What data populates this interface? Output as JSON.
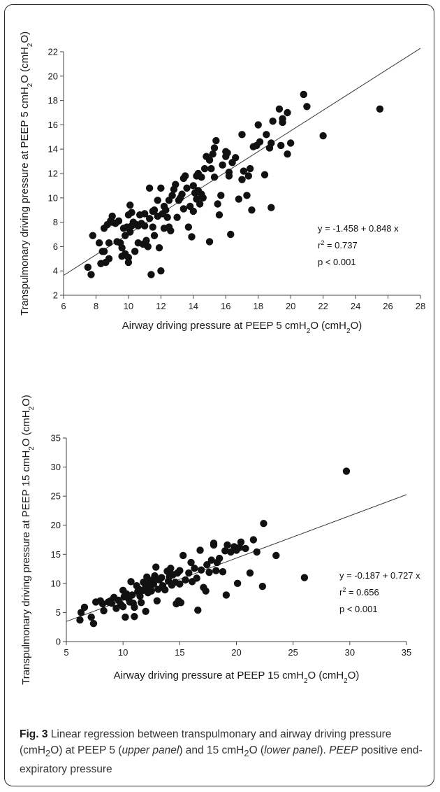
{
  "chart_data": [
    {
      "type": "scatter",
      "xlabel_parts": [
        "Airway driving pressure at PEEP 5 cmH",
        "2",
        "O (cmH",
        "2",
        "O)"
      ],
      "ylabel_parts": [
        "Transpulmonary driving pressure at PEEP 5 cmH",
        "2",
        "O (cmH",
        "2",
        "O)"
      ],
      "xlim": [
        6,
        28
      ],
      "ylim": [
        2,
        22
      ],
      "xticks": [
        6,
        8,
        10,
        12,
        14,
        16,
        18,
        20,
        22,
        24,
        26,
        28
      ],
      "yticks": [
        2,
        4,
        6,
        8,
        10,
        12,
        14,
        16,
        18,
        20,
        22
      ],
      "regression": {
        "intercept": -1.458,
        "slope": 0.848
      },
      "annotation": {
        "equation": "y = -1.458 + 0.848 x",
        "r2_label": "r",
        "r2_sup": "2",
        "r2_value": " = 0.737",
        "p": "p < 0.001"
      },
      "points": [
        [
          7.5,
          4.3
        ],
        [
          7.7,
          3.7
        ],
        [
          7.8,
          6.9
        ],
        [
          8.2,
          6.3
        ],
        [
          8.3,
          4.6
        ],
        [
          8.4,
          5.6
        ],
        [
          8.5,
          7.5
        ],
        [
          8.5,
          5.6
        ],
        [
          8.6,
          4.7
        ],
        [
          8.7,
          7.8
        ],
        [
          8.8,
          6.3
        ],
        [
          8.8,
          5.0
        ],
        [
          8.9,
          8.1
        ],
        [
          9.0,
          8.5
        ],
        [
          9.0,
          8.0
        ],
        [
          9.2,
          7.9
        ],
        [
          9.3,
          6.4
        ],
        [
          9.4,
          8.1
        ],
        [
          9.5,
          6.3
        ],
        [
          9.6,
          5.9
        ],
        [
          9.6,
          5.2
        ],
        [
          9.7,
          7.5
        ],
        [
          9.8,
          6.9
        ],
        [
          9.8,
          5.4
        ],
        [
          9.9,
          7.6
        ],
        [
          10.0,
          8.6
        ],
        [
          10.0,
          4.7
        ],
        [
          10.0,
          5.1
        ],
        [
          10.1,
          7.2
        ],
        [
          10.1,
          9.4
        ],
        [
          10.2,
          7.7
        ],
        [
          10.2,
          8.8
        ],
        [
          10.3,
          8.0
        ],
        [
          10.4,
          5.6
        ],
        [
          10.5,
          7.8
        ],
        [
          10.6,
          6.3
        ],
        [
          10.6,
          7.7
        ],
        [
          10.7,
          8.6
        ],
        [
          10.8,
          7.9
        ],
        [
          10.9,
          6.2
        ],
        [
          11.0,
          8.7
        ],
        [
          11.0,
          7.7
        ],
        [
          11.1,
          6.5
        ],
        [
          11.2,
          6.0
        ],
        [
          11.3,
          8.3
        ],
        [
          11.3,
          10.8
        ],
        [
          11.4,
          3.7
        ],
        [
          11.5,
          7.6
        ],
        [
          11.5,
          8.9
        ],
        [
          11.6,
          9.0
        ],
        [
          11.6,
          6.9
        ],
        [
          11.8,
          9.8
        ],
        [
          11.8,
          8.5
        ],
        [
          11.9,
          5.9
        ],
        [
          12.0,
          10.8
        ],
        [
          12.0,
          4.0
        ],
        [
          12.1,
          8.7
        ],
        [
          12.2,
          9.3
        ],
        [
          12.2,
          7.5
        ],
        [
          12.3,
          9.0
        ],
        [
          12.4,
          8.4
        ],
        [
          12.5,
          9.8
        ],
        [
          12.5,
          7.6
        ],
        [
          12.6,
          7.3
        ],
        [
          12.7,
          10.2
        ],
        [
          12.8,
          10.7
        ],
        [
          12.9,
          11.1
        ],
        [
          13.0,
          8.4
        ],
        [
          13.1,
          9.8
        ],
        [
          13.2,
          10.0
        ],
        [
          13.3,
          10.3
        ],
        [
          13.4,
          9.1
        ],
        [
          13.4,
          11.6
        ],
        [
          13.5,
          11.8
        ],
        [
          13.6,
          10.8
        ],
        [
          13.7,
          7.6
        ],
        [
          13.8,
          9.3
        ],
        [
          13.9,
          6.8
        ],
        [
          14.0,
          8.9
        ],
        [
          14.0,
          11.0
        ],
        [
          14.1,
          10.4
        ],
        [
          14.2,
          11.8
        ],
        [
          14.2,
          9.9
        ],
        [
          14.3,
          10.6
        ],
        [
          14.3,
          12.0
        ],
        [
          14.4,
          9.5
        ],
        [
          14.5,
          10.3
        ],
        [
          14.5,
          11.7
        ],
        [
          14.6,
          10.0
        ],
        [
          14.7,
          12.4
        ],
        [
          14.8,
          13.4
        ],
        [
          15.0,
          6.4
        ],
        [
          15.0,
          13.1
        ],
        [
          15.1,
          12.4
        ],
        [
          15.2,
          13.6
        ],
        [
          15.3,
          14.1
        ],
        [
          15.3,
          11.7
        ],
        [
          15.4,
          14.7
        ],
        [
          15.5,
          9.5
        ],
        [
          15.6,
          8.6
        ],
        [
          15.7,
          10.2
        ],
        [
          15.8,
          12.7
        ],
        [
          16.0,
          13.8
        ],
        [
          16.0,
          13.4
        ],
        [
          16.1,
          13.7
        ],
        [
          16.2,
          11.8
        ],
        [
          16.2,
          12.1
        ],
        [
          16.3,
          7.0
        ],
        [
          16.4,
          12.9
        ],
        [
          16.6,
          13.3
        ],
        [
          16.8,
          9.9
        ],
        [
          17.0,
          11.5
        ],
        [
          17.0,
          15.2
        ],
        [
          17.1,
          12.2
        ],
        [
          17.3,
          10.2
        ],
        [
          17.4,
          11.8
        ],
        [
          17.5,
          12.4
        ],
        [
          17.6,
          9.0
        ],
        [
          17.7,
          14.2
        ],
        [
          17.9,
          14.3
        ],
        [
          18.0,
          16.0
        ],
        [
          18.1,
          14.6
        ],
        [
          18.4,
          11.9
        ],
        [
          18.5,
          15.2
        ],
        [
          18.7,
          14.1
        ],
        [
          18.8,
          9.2
        ],
        [
          18.8,
          14.5
        ],
        [
          18.9,
          16.3
        ],
        [
          19.3,
          17.3
        ],
        [
          19.4,
          14.3
        ],
        [
          19.5,
          16.5
        ],
        [
          19.5,
          16.2
        ],
        [
          19.8,
          17.0
        ],
        [
          19.8,
          13.6
        ],
        [
          20.0,
          14.5
        ],
        [
          20.8,
          18.5
        ],
        [
          21.0,
          17.5
        ],
        [
          22.0,
          15.1
        ],
        [
          25.5,
          17.3
        ]
      ]
    },
    {
      "type": "scatter",
      "xlabel_parts": [
        "Airway driving pressure at PEEP 15 cmH",
        "2",
        "O (cmH",
        "2",
        "O)"
      ],
      "ylabel_parts": [
        "Transpulmonary driving pressure at PEEP 15 cmH",
        "2",
        "O (cmH",
        "2",
        "O)"
      ],
      "xlim": [
        5,
        35
      ],
      "ylim": [
        0,
        35
      ],
      "xticks": [
        5,
        10,
        15,
        20,
        25,
        30,
        35
      ],
      "yticks": [
        0,
        5,
        10,
        15,
        20,
        25,
        30,
        35
      ],
      "regression": {
        "intercept": -0.187,
        "slope": 0.727
      },
      "annotation": {
        "equation": "y = -0.187 + 0.727 x",
        "r2_label": "r",
        "r2_sup": "2",
        "r2_value": " = 0.656",
        "p": "p < 0.001"
      },
      "points": [
        [
          6.2,
          3.7
        ],
        [
          6.3,
          5.0
        ],
        [
          6.6,
          5.9
        ],
        [
          7.2,
          4.2
        ],
        [
          7.4,
          3.1
        ],
        [
          7.6,
          6.8
        ],
        [
          8.0,
          7.0
        ],
        [
          8.2,
          6.5
        ],
        [
          8.3,
          5.3
        ],
        [
          8.7,
          6.8
        ],
        [
          8.9,
          7.0
        ],
        [
          9.0,
          6.6
        ],
        [
          9.2,
          7.6
        ],
        [
          9.4,
          5.7
        ],
        [
          9.6,
          7.1
        ],
        [
          9.8,
          6.4
        ],
        [
          10.0,
          8.8
        ],
        [
          10.0,
          6.0
        ],
        [
          10.1,
          7.7
        ],
        [
          10.2,
          4.2
        ],
        [
          10.3,
          8.2
        ],
        [
          10.5,
          7.3
        ],
        [
          10.6,
          6.8
        ],
        [
          10.7,
          10.3
        ],
        [
          10.8,
          8.0
        ],
        [
          10.9,
          6.6
        ],
        [
          11.0,
          5.9
        ],
        [
          11.0,
          4.3
        ],
        [
          11.2,
          9.6
        ],
        [
          11.3,
          8.6
        ],
        [
          11.4,
          9.0
        ],
        [
          11.5,
          7.8
        ],
        [
          11.6,
          6.7
        ],
        [
          11.8,
          8.8
        ],
        [
          11.8,
          10.2
        ],
        [
          12.0,
          5.2
        ],
        [
          12.0,
          9.5
        ],
        [
          12.1,
          11.1
        ],
        [
          12.2,
          8.4
        ],
        [
          12.3,
          10.0
        ],
        [
          12.4,
          9.3
        ],
        [
          12.5,
          8.7
        ],
        [
          12.6,
          10.6
        ],
        [
          12.7,
          9.9
        ],
        [
          12.8,
          11.3
        ],
        [
          12.9,
          12.8
        ],
        [
          13.0,
          7.0
        ],
        [
          13.1,
          9.0
        ],
        [
          13.2,
          10.6
        ],
        [
          13.4,
          11.0
        ],
        [
          13.5,
          9.6
        ],
        [
          13.7,
          8.9
        ],
        [
          13.9,
          12.1
        ],
        [
          14.0,
          10.4
        ],
        [
          14.1,
          11.2
        ],
        [
          14.2,
          12.6
        ],
        [
          14.3,
          9.7
        ],
        [
          14.4,
          11.5
        ],
        [
          14.6,
          10.2
        ],
        [
          14.7,
          6.5
        ],
        [
          14.8,
          11.8
        ],
        [
          14.9,
          7.0
        ],
        [
          15.0,
          12.2
        ],
        [
          15.0,
          9.9
        ],
        [
          15.1,
          6.7
        ],
        [
          15.3,
          14.8
        ],
        [
          15.5,
          10.6
        ],
        [
          15.8,
          11.8
        ],
        [
          16.0,
          13.6
        ],
        [
          16.1,
          10.3
        ],
        [
          16.3,
          12.6
        ],
        [
          16.5,
          10.9
        ],
        [
          16.6,
          5.4
        ],
        [
          16.8,
          15.7
        ],
        [
          16.9,
          12.3
        ],
        [
          17.1,
          9.3
        ],
        [
          17.3,
          8.7
        ],
        [
          17.4,
          13.2
        ],
        [
          17.6,
          11.9
        ],
        [
          17.8,
          14.0
        ],
        [
          18.0,
          16.6
        ],
        [
          18.0,
          16.9
        ],
        [
          18.2,
          12.2
        ],
        [
          18.3,
          13.6
        ],
        [
          18.5,
          14.3
        ],
        [
          18.8,
          12.0
        ],
        [
          19.0,
          15.6
        ],
        [
          19.1,
          8.0
        ],
        [
          19.2,
          16.6
        ],
        [
          19.5,
          15.4
        ],
        [
          19.8,
          16.3
        ],
        [
          20.0,
          15.7
        ],
        [
          20.1,
          10.0
        ],
        [
          20.3,
          16.2
        ],
        [
          20.4,
          17.1
        ],
        [
          20.8,
          16.0
        ],
        [
          21.2,
          11.8
        ],
        [
          21.5,
          17.5
        ],
        [
          21.8,
          15.4
        ],
        [
          22.3,
          9.5
        ],
        [
          22.4,
          20.3
        ],
        [
          23.5,
          14.8
        ],
        [
          26.0,
          11.0
        ],
        [
          29.7,
          29.3
        ]
      ]
    }
  ],
  "caption": {
    "fig_label": "Fig. 3",
    "t1": " Linear regression between transpulmonary and airway driving pressure (cmH",
    "sub1": "2",
    "t2": "O) at PEEP 5 (",
    "i1": "upper panel",
    "t3": ") and 15 cmH",
    "sub2": "2",
    "t4": "O (",
    "i2": "lower panel",
    "t5": "). ",
    "i3": "PEEP",
    "t6": " positive end-expiratory pressure"
  }
}
